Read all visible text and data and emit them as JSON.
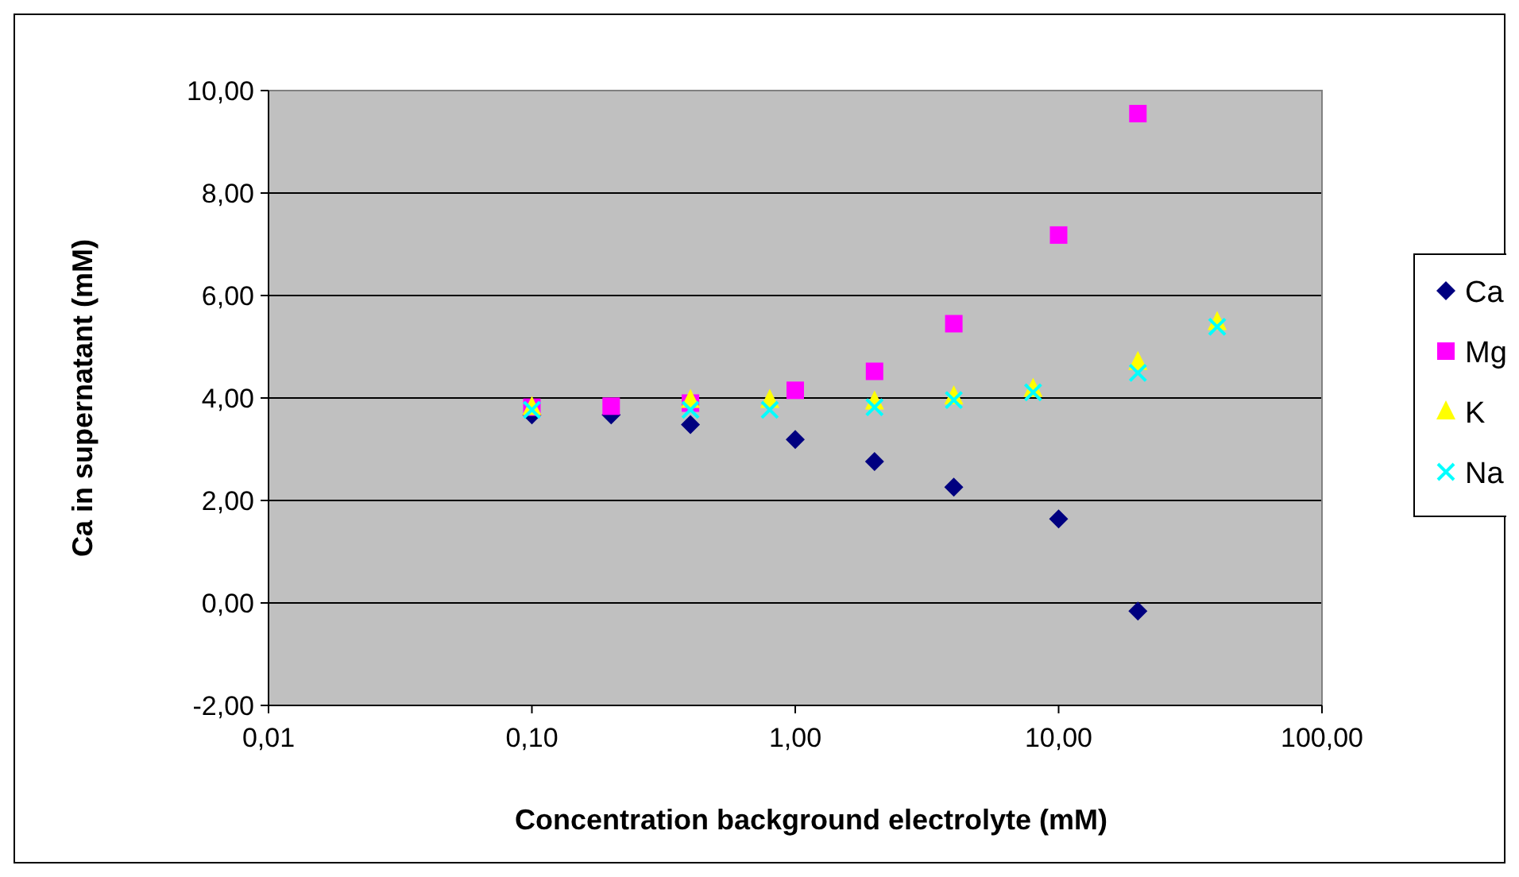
{
  "chart_data": {
    "type": "scatter",
    "xlabel": "Concentration background electrolyte (mM)",
    "ylabel": "Ca in supernatant (mM)",
    "log": "x",
    "grid": "y",
    "legend": "right",
    "xlim": [
      0.01,
      100
    ],
    "xticks": [
      {
        "value": 0.01,
        "label": "0,01"
      },
      {
        "value": 0.1,
        "label": "0,10"
      },
      {
        "value": 1,
        "label": "1,00"
      },
      {
        "value": 10,
        "label": "10,00"
      },
      {
        "value": 100,
        "label": "100,00"
      }
    ],
    "ylim": [
      -2,
      10
    ],
    "yticks": [
      {
        "value": -2,
        "label": "-2,00"
      },
      {
        "value": 0,
        "label": "0,00"
      },
      {
        "value": 2,
        "label": "2,00"
      },
      {
        "value": 4,
        "label": "4,00"
      },
      {
        "value": 6,
        "label": "6,00"
      },
      {
        "value": 8,
        "label": "8,00"
      },
      {
        "value": 10,
        "label": "10,00"
      }
    ],
    "series": [
      {
        "name": "Ca",
        "color": "#000080",
        "marker": "diamond",
        "x": [
          0.1,
          0.2,
          0.4,
          1,
          2,
          4,
          10,
          20
        ],
        "values": [
          3.67,
          3.67,
          3.48,
          3.19,
          2.76,
          2.26,
          1.64,
          -0.16
        ]
      },
      {
        "name": "Mg",
        "color": "#ff00ff",
        "marker": "square",
        "x": [
          0.1,
          0.2,
          0.4,
          1,
          2,
          4,
          10,
          20
        ],
        "values": [
          3.82,
          3.84,
          3.9,
          4.15,
          4.52,
          5.45,
          7.18,
          9.55
        ]
      },
      {
        "name": "K",
        "color": "#ffff00",
        "marker": "triangle",
        "x": [
          0.1,
          0.4,
          0.8,
          2,
          4,
          8,
          20,
          40
        ],
        "values": [
          3.82,
          3.96,
          3.96,
          3.93,
          4.03,
          4.18,
          4.7,
          5.48
        ]
      },
      {
        "name": "Na",
        "color": "#00ffff",
        "marker": "cross",
        "x": [
          0.1,
          0.4,
          0.8,
          2,
          4,
          8,
          20,
          40
        ],
        "values": [
          3.77,
          3.77,
          3.77,
          3.82,
          3.96,
          4.11,
          4.49,
          5.39
        ]
      }
    ]
  }
}
